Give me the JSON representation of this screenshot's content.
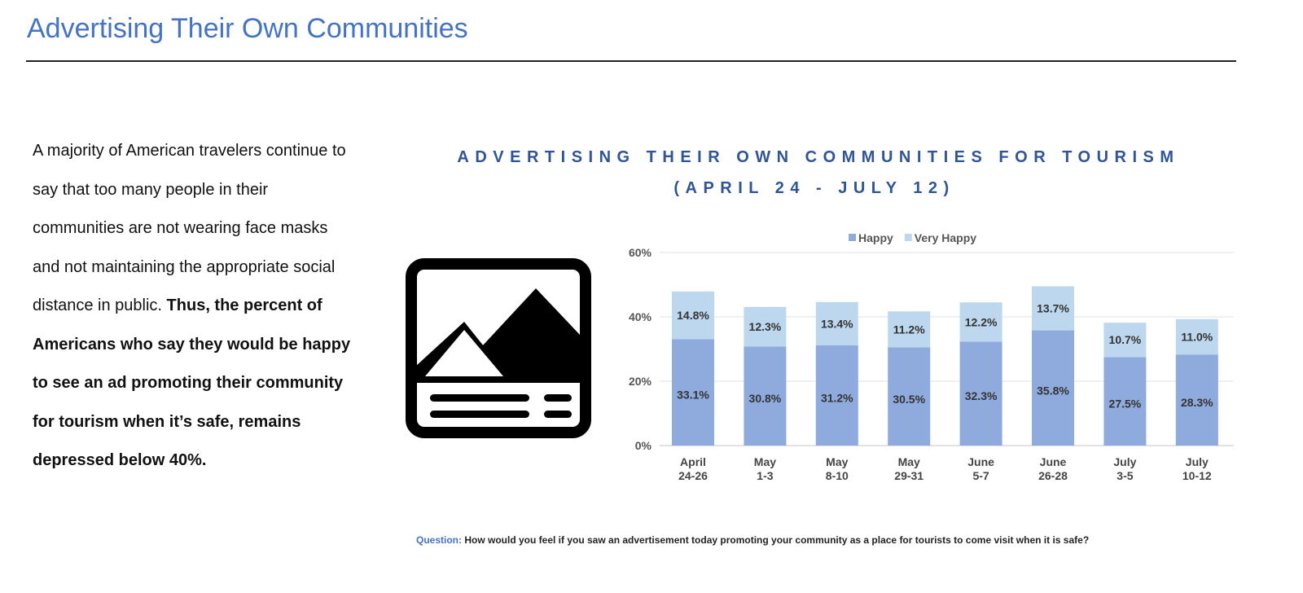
{
  "page": {
    "title": "Advertising Their Own Communities",
    "body_plain": "A majority of American travelers continue to say that too many people in their communities are not wearing face masks and not maintaining the appropriate social distance in public. ",
    "body_bold": "Thus, the percent of Americans who say they would be happy to see an ad promoting their community for tourism when it’s safe, remains depressed below 40%.",
    "question_label": "Question:",
    "question_text": " How would you feel if you saw an advertisement today promoting your community as a place for tourists to come visit when it is safe?",
    "icon": "image-placeholder-icon"
  },
  "chart_data": {
    "type": "bar",
    "stacked": true,
    "title": "ADVERTISING THEIR OWN COMMUNITIES FOR TOURISM",
    "subtitle": "(APRIL 24 - JULY 12)",
    "categories": [
      "April 24-26",
      "May 1-3",
      "May 8-10",
      "May 29-31",
      "June 5-7",
      "June 26-28",
      "July 3-5",
      "July 10-12"
    ],
    "category_lines": [
      [
        "April",
        "24-26"
      ],
      [
        "May",
        "1-3"
      ],
      [
        "May",
        "8-10"
      ],
      [
        "May",
        "29-31"
      ],
      [
        "June",
        "5-7"
      ],
      [
        "June",
        "26-28"
      ],
      [
        "July",
        "3-5"
      ],
      [
        "July",
        "10-12"
      ]
    ],
    "series": [
      {
        "name": "Happy",
        "color": "#8FAADC",
        "values": [
          33.1,
          30.8,
          31.2,
          30.5,
          32.3,
          35.8,
          27.5,
          28.3
        ]
      },
      {
        "name": "Very Happy",
        "color": "#BDD7EE",
        "values": [
          14.8,
          12.3,
          13.4,
          11.2,
          12.2,
          13.7,
          10.7,
          11.0
        ]
      }
    ],
    "yticks": [
      "0%",
      "20%",
      "40%",
      "60%"
    ],
    "ylim": [
      0,
      60
    ],
    "grid": true,
    "legend": "top"
  }
}
